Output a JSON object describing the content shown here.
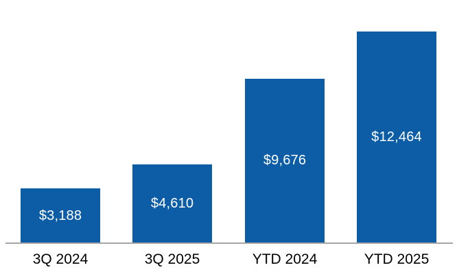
{
  "chart_data": {
    "type": "bar",
    "categories": [
      "3Q 2024",
      "3Q 2025",
      "YTD 2024",
      "YTD 2025"
    ],
    "values": [
      3188,
      4610,
      9676,
      12464
    ],
    "value_labels": [
      "$3,188",
      "$4,610",
      "$9,676",
      "$12,464"
    ],
    "title": "",
    "xlabel": "",
    "ylabel": "",
    "ylim": [
      0,
      12464
    ],
    "grid": false,
    "legend": false,
    "value_label_position": "inside-center",
    "axis_shown": "x-baseline-only"
  },
  "colors": {
    "bar": "#0C5DA5",
    "value_label": "#FFFFFF",
    "category_label": "#000000",
    "axis_line": "#A6A6A6",
    "background": "#FFFFFF"
  }
}
